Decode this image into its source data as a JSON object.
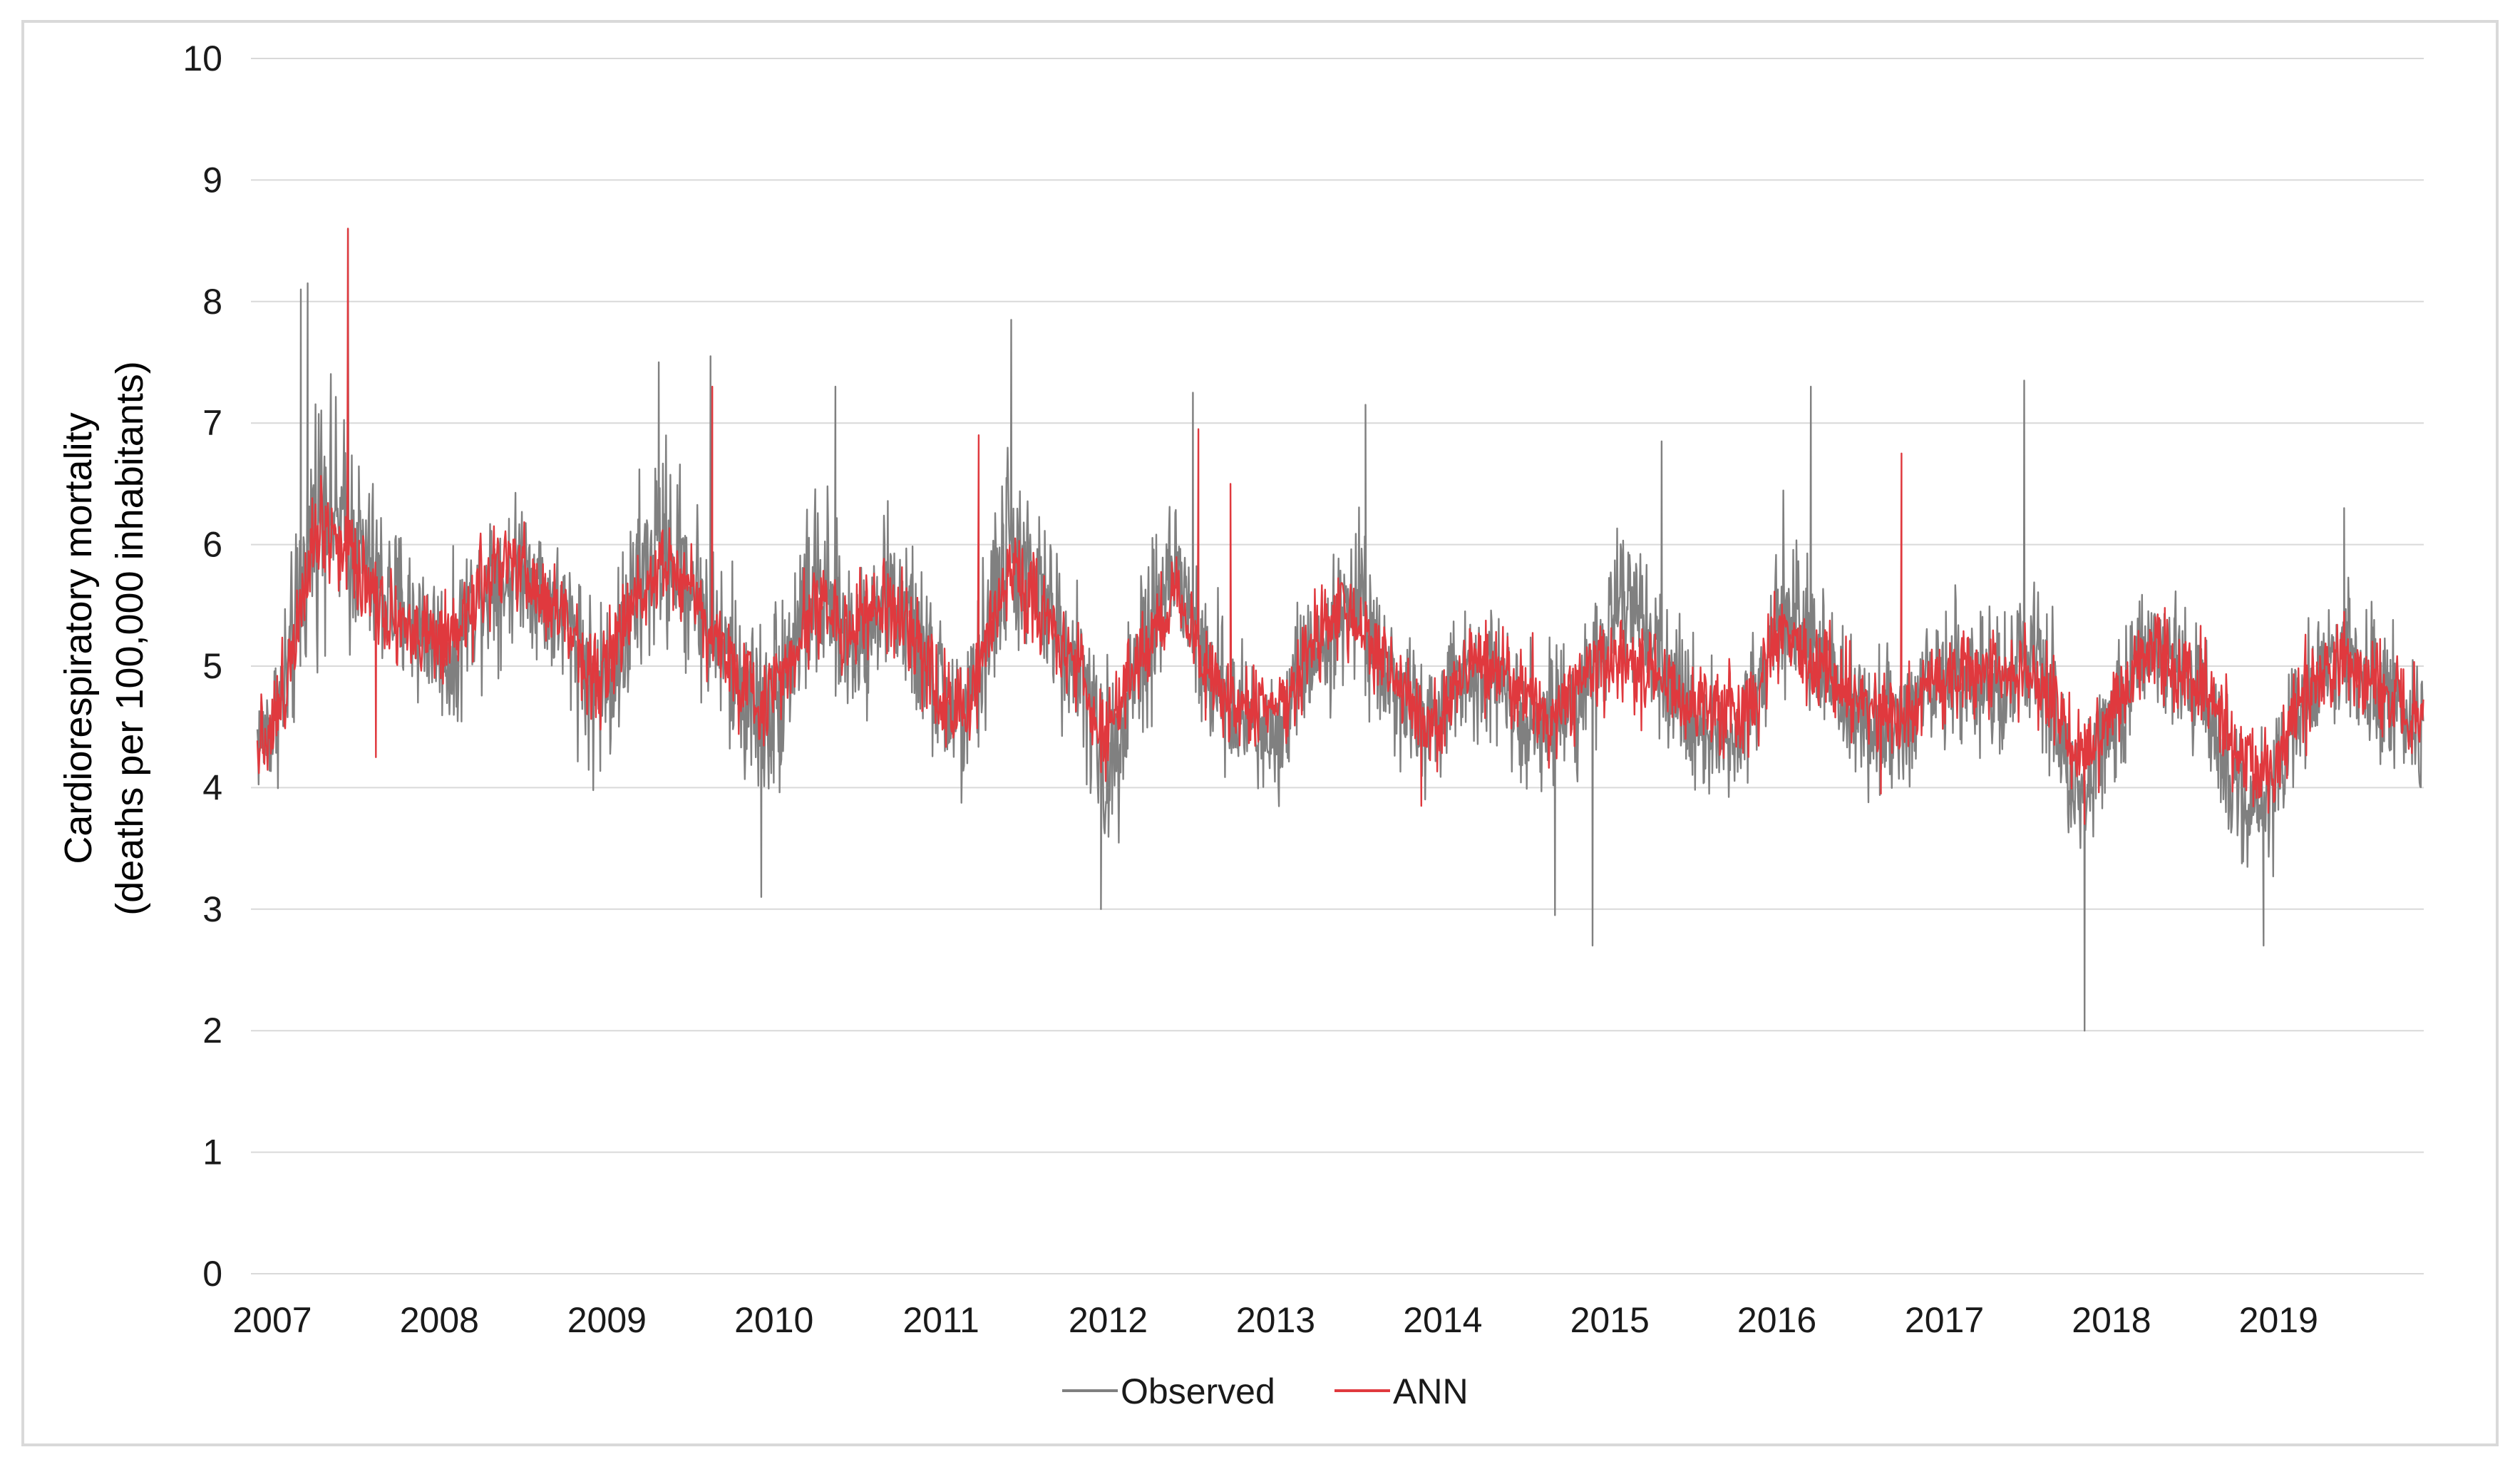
{
  "chart_data": {
    "type": "line",
    "title": "",
    "ylabel_line1": "Cardiorespiratory mortality",
    "ylabel_line2": "(deaths per  100,000 inhabitants)",
    "xlabel": "",
    "ylim": [
      0,
      10
    ],
    "yticks": [
      "0",
      "1",
      "2",
      "3",
      "4",
      "5",
      "6",
      "7",
      "8",
      "9",
      "10"
    ],
    "xlim": [
      "2007-01-01",
      "2019-12-31"
    ],
    "xticks": [
      "2007",
      "2008",
      "2009",
      "2010",
      "2011",
      "2012",
      "2013",
      "2014",
      "2015",
      "2016",
      "2017",
      "2018",
      "2019"
    ],
    "grid": "horizontal",
    "legend_position": "bottom",
    "series": [
      {
        "name": "Observed",
        "color": "#808080",
        "x": [
          "2007-01",
          "2007-02",
          "2007-03",
          "2007-04",
          "2007-05",
          "2007-06",
          "2007-07",
          "2007-08",
          "2007-09",
          "2007-10",
          "2007-11",
          "2007-12",
          "2008-01",
          "2008-02",
          "2008-03",
          "2008-04",
          "2008-05",
          "2008-06",
          "2008-07",
          "2008-08",
          "2008-09",
          "2008-10",
          "2008-11",
          "2008-12",
          "2009-01",
          "2009-02",
          "2009-03",
          "2009-04",
          "2009-05",
          "2009-06",
          "2009-07",
          "2009-08",
          "2009-09",
          "2009-10",
          "2009-11",
          "2009-12",
          "2010-01",
          "2010-02",
          "2010-03",
          "2010-04",
          "2010-05",
          "2010-06",
          "2010-07",
          "2010-08",
          "2010-09",
          "2010-10",
          "2010-11",
          "2010-12",
          "2011-01",
          "2011-02",
          "2011-03",
          "2011-04",
          "2011-05",
          "2011-06",
          "2011-07",
          "2011-08",
          "2011-09",
          "2011-10",
          "2011-11",
          "2011-12",
          "2012-01",
          "2012-02",
          "2012-03",
          "2012-04",
          "2012-05",
          "2012-06",
          "2012-07",
          "2012-08",
          "2012-09",
          "2012-10",
          "2012-11",
          "2012-12",
          "2013-01",
          "2013-02",
          "2013-03",
          "2013-04",
          "2013-05",
          "2013-06",
          "2013-07",
          "2013-08",
          "2013-09",
          "2013-10",
          "2013-11",
          "2013-12",
          "2014-01",
          "2014-02",
          "2014-03",
          "2014-04",
          "2014-05",
          "2014-06",
          "2014-07",
          "2014-08",
          "2014-09",
          "2014-10",
          "2014-11",
          "2014-12",
          "2015-01",
          "2015-02",
          "2015-03",
          "2015-04",
          "2015-05",
          "2015-06",
          "2015-07",
          "2015-08",
          "2015-09",
          "2015-10",
          "2015-11",
          "2015-12",
          "2016-01",
          "2016-02",
          "2016-03",
          "2016-04",
          "2016-05",
          "2016-06",
          "2016-07",
          "2016-08",
          "2016-09",
          "2016-10",
          "2016-11",
          "2016-12",
          "2017-01",
          "2017-02",
          "2017-03",
          "2017-04",
          "2017-05",
          "2017-06",
          "2017-07",
          "2017-08",
          "2017-09",
          "2017-10",
          "2017-11",
          "2017-12",
          "2018-01",
          "2018-02",
          "2018-03",
          "2018-04",
          "2018-05",
          "2018-06",
          "2018-07",
          "2018-08",
          "2018-09",
          "2018-10",
          "2018-11",
          "2018-12",
          "2019-01",
          "2019-02",
          "2019-03",
          "2019-04",
          "2019-05",
          "2019-06",
          "2019-07",
          "2019-08",
          "2019-09",
          "2019-10",
          "2019-11",
          "2019-12"
        ],
        "y": [
          4.4,
          4.5,
          4.8,
          5.4,
          6.2,
          6.5,
          6.1,
          6.0,
          5.8,
          5.6,
          5.5,
          5.4,
          5.3,
          5.2,
          5.0,
          5.4,
          5.6,
          5.8,
          5.7,
          5.9,
          5.7,
          5.5,
          5.4,
          5.2,
          4.8,
          4.9,
          5.1,
          5.5,
          5.8,
          6.0,
          5.9,
          5.7,
          5.5,
          5.2,
          5.0,
          4.8,
          4.6,
          4.7,
          5.0,
          5.4,
          5.6,
          5.5,
          5.3,
          5.2,
          5.4,
          5.6,
          5.5,
          5.3,
          5.0,
          4.8,
          4.6,
          4.5,
          5.0,
          5.6,
          6.0,
          5.8,
          5.6,
          5.4,
          5.2,
          5.0,
          4.5,
          4.1,
          4.6,
          5.0,
          5.3,
          5.6,
          5.8,
          5.4,
          5.0,
          4.8,
          4.6,
          4.6,
          4.5,
          4.4,
          4.7,
          5.0,
          5.2,
          5.3,
          5.4,
          5.6,
          5.3,
          5.0,
          4.7,
          4.6,
          4.5,
          4.6,
          4.8,
          5.0,
          5.0,
          4.9,
          4.8,
          4.6,
          4.5,
          4.6,
          4.7,
          4.8,
          5.0,
          5.3,
          5.6,
          5.4,
          5.1,
          4.9,
          4.8,
          4.6,
          4.5,
          4.4,
          4.4,
          4.6,
          4.9,
          5.6,
          5.5,
          5.3,
          5.1,
          4.9,
          4.7,
          4.6,
          4.5,
          4.5,
          4.6,
          4.7,
          4.8,
          4.9,
          5.0,
          4.9,
          4.8,
          4.7,
          4.9,
          5.1,
          5.0,
          4.6,
          4.0,
          3.9,
          4.2,
          4.6,
          4.8,
          5.0,
          5.1,
          5.0,
          4.9,
          4.8,
          4.7,
          4.4,
          4.0,
          3.8,
          3.9,
          4.1,
          4.4,
          4.7,
          5.0,
          5.2,
          5.1,
          4.9,
          4.8,
          4.7,
          4.6,
          4.5
        ],
        "amplitude": [
          0.5,
          0.6,
          0.8,
          0.9,
          1.1,
          0.9,
          1.0,
          0.8,
          0.8,
          0.7,
          0.7,
          0.7,
          0.6,
          0.6,
          0.7,
          0.6,
          0.7,
          0.7,
          0.6,
          0.6,
          0.6,
          0.6,
          0.7,
          0.8,
          0.8,
          0.8,
          0.8,
          0.9,
          0.9,
          0.9,
          0.8,
          0.8,
          0.8,
          0.8,
          0.8,
          0.8,
          0.8,
          0.9,
          0.8,
          0.8,
          0.9,
          0.7,
          0.7,
          0.7,
          0.7,
          0.7,
          0.7,
          0.7,
          0.7,
          0.7,
          0.7,
          0.7,
          0.8,
          0.9,
          0.8,
          0.7,
          0.7,
          0.7,
          0.7,
          0.7,
          0.8,
          0.8,
          0.8,
          0.8,
          0.8,
          0.8,
          0.7,
          0.7,
          0.7,
          0.6,
          0.6,
          0.6,
          0.6,
          0.6,
          0.6,
          0.6,
          0.6,
          0.6,
          0.6,
          0.7,
          0.6,
          0.6,
          0.6,
          0.6,
          0.6,
          0.6,
          0.6,
          0.6,
          0.6,
          0.6,
          0.6,
          0.6,
          0.6,
          0.6,
          0.6,
          0.6,
          0.6,
          0.6,
          0.6,
          0.6,
          0.6,
          0.6,
          0.6,
          0.6,
          0.6,
          0.6,
          0.6,
          0.6,
          0.6,
          0.7,
          0.6,
          0.6,
          0.6,
          0.6,
          0.6,
          0.6,
          0.6,
          0.6,
          0.6,
          0.6,
          0.6,
          0.6,
          0.6,
          0.6,
          0.6,
          0.6,
          0.6,
          0.7,
          0.7,
          0.7,
          0.6,
          0.6,
          0.6,
          0.6,
          0.6,
          0.6,
          0.6,
          0.6,
          0.6,
          0.6,
          0.6,
          0.6,
          0.6,
          0.6,
          0.6,
          0.6,
          0.6,
          0.6,
          0.6,
          0.6,
          0.6,
          0.6,
          0.6,
          0.6,
          0.6,
          0.6
        ],
        "extremes": [
          {
            "x": "2007-04-20",
            "y": 8.1
          },
          {
            "x": "2007-05-05",
            "y": 8.15
          },
          {
            "x": "2007-08-01",
            "y": 8.6
          },
          {
            "x": "2009-06-10",
            "y": 7.5
          },
          {
            "x": "2009-10-01",
            "y": 7.55
          },
          {
            "x": "2010-01-20",
            "y": 3.1
          },
          {
            "x": "2010-07-01",
            "y": 7.3
          },
          {
            "x": "2011-07-20",
            "y": 7.85
          },
          {
            "x": "2012-02-01",
            "y": 3.0
          },
          {
            "x": "2012-08-20",
            "y": 7.25
          },
          {
            "x": "2013-09-01",
            "y": 7.15
          },
          {
            "x": "2014-10-20",
            "y": 2.95
          },
          {
            "x": "2015-01-10",
            "y": 2.7
          },
          {
            "x": "2015-06-10",
            "y": 6.85
          },
          {
            "x": "2016-05-01",
            "y": 7.3
          },
          {
            "x": "2017-08-10",
            "y": 7.35
          },
          {
            "x": "2017-12-20",
            "y": 2.0
          },
          {
            "x": "2019-01-15",
            "y": 2.7
          },
          {
            "x": "2019-07-10",
            "y": 6.3
          }
        ]
      },
      {
        "name": "ANN",
        "color": "#e0393e",
        "x": [
          "2007-01",
          "2007-02",
          "2007-03",
          "2007-04",
          "2007-05",
          "2007-06",
          "2007-07",
          "2007-08",
          "2007-09",
          "2007-10",
          "2007-11",
          "2007-12",
          "2008-01",
          "2008-02",
          "2008-03",
          "2008-04",
          "2008-05",
          "2008-06",
          "2008-07",
          "2008-08",
          "2008-09",
          "2008-10",
          "2008-11",
          "2008-12",
          "2009-01",
          "2009-02",
          "2009-03",
          "2009-04",
          "2009-05",
          "2009-06",
          "2009-07",
          "2009-08",
          "2009-09",
          "2009-10",
          "2009-11",
          "2009-12",
          "2010-01",
          "2010-02",
          "2010-03",
          "2010-04",
          "2010-05",
          "2010-06",
          "2010-07",
          "2010-08",
          "2010-09",
          "2010-10",
          "2010-11",
          "2010-12",
          "2011-01",
          "2011-02",
          "2011-03",
          "2011-04",
          "2011-05",
          "2011-06",
          "2011-07",
          "2011-08",
          "2011-09",
          "2011-10",
          "2011-11",
          "2011-12",
          "2012-01",
          "2012-02",
          "2012-03",
          "2012-04",
          "2012-05",
          "2012-06",
          "2012-07",
          "2012-08",
          "2012-09",
          "2012-10",
          "2012-11",
          "2012-12",
          "2013-01",
          "2013-02",
          "2013-03",
          "2013-04",
          "2013-05",
          "2013-06",
          "2013-07",
          "2013-08",
          "2013-09",
          "2013-10",
          "2013-11",
          "2013-12",
          "2014-01",
          "2014-02",
          "2014-03",
          "2014-04",
          "2014-05",
          "2014-06",
          "2014-07",
          "2014-08",
          "2014-09",
          "2014-10",
          "2014-11",
          "2014-12",
          "2015-01",
          "2015-02",
          "2015-03",
          "2015-04",
          "2015-05",
          "2015-06",
          "2015-07",
          "2015-08",
          "2015-09",
          "2015-10",
          "2015-11",
          "2015-12",
          "2016-01",
          "2016-02",
          "2016-03",
          "2016-04",
          "2016-05",
          "2016-06",
          "2016-07",
          "2016-08",
          "2016-09",
          "2016-10",
          "2016-11",
          "2016-12",
          "2017-01",
          "2017-02",
          "2017-03",
          "2017-04",
          "2017-05",
          "2017-06",
          "2017-07",
          "2017-08",
          "2017-09",
          "2017-10",
          "2017-11",
          "2017-12",
          "2018-01",
          "2018-02",
          "2018-03",
          "2018-04",
          "2018-05",
          "2018-06",
          "2018-07",
          "2018-08",
          "2018-09",
          "2018-10",
          "2018-11",
          "2018-12",
          "2019-01",
          "2019-02",
          "2019-03",
          "2019-04",
          "2019-05",
          "2019-06",
          "2019-07",
          "2019-08",
          "2019-09",
          "2019-10",
          "2019-11",
          "2019-12"
        ],
        "y": [
          4.4,
          4.5,
          4.8,
          5.5,
          6.1,
          6.2,
          6.0,
          5.9,
          5.7,
          5.5,
          5.4,
          5.3,
          5.2,
          5.2,
          5.1,
          5.4,
          5.6,
          5.8,
          5.8,
          5.8,
          5.6,
          5.5,
          5.4,
          5.2,
          4.9,
          5.0,
          5.2,
          5.5,
          5.7,
          5.9,
          5.8,
          5.7,
          5.4,
          5.2,
          5.0,
          4.8,
          4.7,
          4.8,
          5.0,
          5.3,
          5.5,
          5.5,
          5.3,
          5.3,
          5.4,
          5.5,
          5.4,
          5.2,
          5.0,
          4.8,
          4.6,
          4.6,
          5.0,
          5.5,
          5.8,
          5.7,
          5.5,
          5.3,
          5.2,
          5.0,
          4.6,
          4.4,
          4.7,
          5.0,
          5.2,
          5.4,
          5.6,
          5.3,
          5.0,
          4.8,
          4.7,
          4.7,
          4.6,
          4.6,
          4.8,
          5.0,
          5.2,
          5.3,
          5.4,
          5.4,
          5.2,
          5.0,
          4.8,
          4.7,
          4.4,
          4.6,
          4.8,
          5.0,
          5.0,
          5.0,
          4.9,
          4.8,
          4.7,
          4.6,
          4.7,
          4.8,
          4.9,
          5.0,
          5.1,
          5.0,
          5.0,
          4.9,
          4.8,
          4.7,
          4.6,
          4.6,
          4.6,
          4.7,
          4.8,
          5.3,
          5.2,
          5.1,
          5.0,
          4.9,
          4.8,
          4.7,
          4.6,
          4.6,
          4.6,
          4.7,
          4.8,
          4.9,
          5.0,
          4.9,
          4.9,
          4.9,
          5.0,
          5.0,
          4.9,
          4.7,
          4.4,
          4.3,
          4.4,
          4.6,
          4.8,
          5.0,
          5.1,
          5.0,
          4.9,
          4.9,
          4.8,
          4.6,
          4.3,
          4.2,
          4.1,
          4.2,
          4.5,
          4.7,
          4.9,
          5.0,
          5.0,
          4.9,
          4.8,
          4.8,
          4.7,
          4.6
        ],
        "amplitude": [
          0.4,
          0.4,
          0.5,
          0.5,
          0.5,
          0.5,
          0.5,
          0.5,
          0.4,
          0.4,
          0.4,
          0.4,
          0.4,
          0.4,
          0.4,
          0.4,
          0.4,
          0.4,
          0.4,
          0.4,
          0.4,
          0.4,
          0.4,
          0.4,
          0.4,
          0.4,
          0.4,
          0.4,
          0.4,
          0.4,
          0.4,
          0.4,
          0.4,
          0.4,
          0.4,
          0.4,
          0.4,
          0.4,
          0.4,
          0.4,
          0.4,
          0.4,
          0.4,
          0.4,
          0.4,
          0.4,
          0.4,
          0.4,
          0.4,
          0.4,
          0.4,
          0.4,
          0.4,
          0.4,
          0.4,
          0.4,
          0.4,
          0.4,
          0.4,
          0.4,
          0.4,
          0.4,
          0.4,
          0.4,
          0.4,
          0.4,
          0.4,
          0.4,
          0.4,
          0.4,
          0.4,
          0.4,
          0.4,
          0.4,
          0.4,
          0.4,
          0.4,
          0.4,
          0.4,
          0.4,
          0.4,
          0.4,
          0.4,
          0.4,
          0.4,
          0.4,
          0.4,
          0.4,
          0.4,
          0.4,
          0.4,
          0.4,
          0.4,
          0.4,
          0.4,
          0.4,
          0.4,
          0.4,
          0.4,
          0.4,
          0.4,
          0.4,
          0.4,
          0.4,
          0.4,
          0.4,
          0.4,
          0.4,
          0.4,
          0.4,
          0.4,
          0.4,
          0.4,
          0.4,
          0.4,
          0.4,
          0.4,
          0.4,
          0.4,
          0.4,
          0.4,
          0.4,
          0.4,
          0.4,
          0.4,
          0.4,
          0.4,
          0.4,
          0.4,
          0.4,
          0.4,
          0.4,
          0.4,
          0.4,
          0.4,
          0.4,
          0.4,
          0.4,
          0.4,
          0.4,
          0.4,
          0.4,
          0.4,
          0.4,
          0.4,
          0.4,
          0.4,
          0.4,
          0.4,
          0.4,
          0.4,
          0.4,
          0.4,
          0.4,
          0.4,
          0.4
        ],
        "extremes": [
          {
            "x": "2007-08-01",
            "y": 8.6
          },
          {
            "x": "2007-10-01",
            "y": 4.25
          },
          {
            "x": "2009-10-05",
            "y": 7.3
          },
          {
            "x": "2011-05-10",
            "y": 6.9
          },
          {
            "x": "2012-09-01",
            "y": 6.95
          },
          {
            "x": "2012-11-10",
            "y": 6.5
          },
          {
            "x": "2014-01-01",
            "y": 3.85
          },
          {
            "x": "2016-10-01",
            "y": 3.95
          },
          {
            "x": "2016-11-15",
            "y": 6.75
          },
          {
            "x": "2017-12-20",
            "y": 3.7
          }
        ]
      }
    ]
  }
}
